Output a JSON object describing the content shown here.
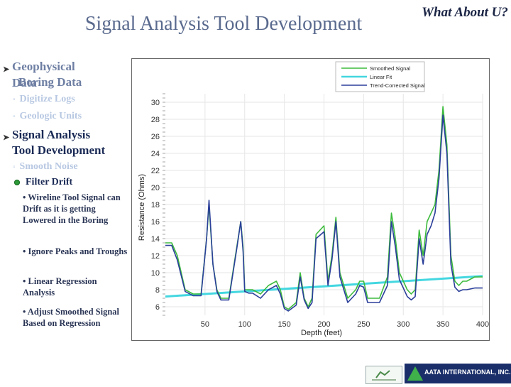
{
  "slide": {
    "title": "Signal Analysis Tool Development",
    "corner_title": "What About U?"
  },
  "outline": {
    "item1_line1": "Geophysical",
    "item1_line2_over": "Data",
    "item1_line2_under": "Boring Data",
    "item1_sub1": "Digitize Logs",
    "item1_sub2": "Geologic Units",
    "item2_line1": "Signal Analysis",
    "item2_line2": "Tool Development",
    "item2_sub1": "Smooth Noise",
    "item2_sub2": "Filter Drift",
    "points": [
      "• Wireline Tool Signal can Drift as it is getting Lowered in the Boring",
      "• Ignore Peaks and Troughs",
      "• Linear Regression Analysis",
      "• Adjust Smoothed Signal Based on Regression"
    ]
  },
  "logos": {
    "company": "AATA INTERNATIONAL, INC."
  },
  "colors": {
    "smoothed": "#3dbb3d",
    "linear_fit": "#44d7e0",
    "trend_corrected": "#2b3f9a"
  },
  "chart_data": {
    "type": "line",
    "xlabel": "Depth (feet)",
    "ylabel": "Resistance (Ohms)",
    "xlim": [
      0,
      400
    ],
    "ylim": [
      5,
      31
    ],
    "xticks": [
      "50",
      "100",
      "150",
      "200",
      "250",
      "300",
      "350",
      "400"
    ],
    "yticks": [
      "6",
      "8",
      "10",
      "12",
      "14",
      "16",
      "18",
      "20",
      "22",
      "24",
      "26",
      "28",
      "30"
    ],
    "legend": "top-right",
    "series": [
      {
        "name": "Smoothed Signal",
        "x": [
          0,
          8,
          15,
          25,
          35,
          45,
          52,
          55,
          60,
          65,
          70,
          80,
          90,
          95,
          98,
          100,
          105,
          110,
          120,
          130,
          140,
          145,
          150,
          155,
          165,
          170,
          175,
          180,
          185,
          190,
          200,
          205,
          210,
          215,
          220,
          230,
          240,
          245,
          250,
          255,
          260,
          270,
          280,
          285,
          290,
          295,
          300,
          305,
          310,
          315,
          320,
          325,
          330,
          335,
          340,
          345,
          350,
          355,
          360,
          365,
          370,
          375,
          380,
          390,
          400
        ],
        "y": [
          13.5,
          13.5,
          12,
          8,
          7.5,
          7.5,
          14,
          18,
          11,
          8,
          7,
          7,
          13,
          16,
          13,
          8,
          8,
          8,
          7.5,
          8.5,
          9,
          8,
          6,
          5.7,
          6.5,
          10,
          7,
          6,
          7,
          14.5,
          15.5,
          9,
          12,
          16.5,
          10,
          7,
          8,
          9,
          9,
          7,
          7,
          7,
          9.5,
          17,
          14,
          10,
          9,
          8,
          7.5,
          8,
          15,
          12,
          16,
          17,
          18,
          22,
          29.5,
          25,
          12,
          9,
          8.5,
          9,
          9,
          9.5,
          9.5
        ]
      },
      {
        "name": "Linear Fit",
        "x": [
          0,
          400
        ],
        "y": [
          7.2,
          9.6
        ]
      },
      {
        "name": "Trend-Corrected Signal",
        "x": [
          0,
          8,
          15,
          25,
          35,
          45,
          52,
          55,
          60,
          65,
          70,
          80,
          90,
          95,
          98,
          100,
          105,
          110,
          120,
          130,
          140,
          145,
          150,
          155,
          165,
          170,
          175,
          180,
          185,
          190,
          200,
          205,
          210,
          215,
          220,
          230,
          240,
          245,
          250,
          255,
          260,
          270,
          280,
          285,
          290,
          295,
          300,
          305,
          310,
          315,
          320,
          325,
          330,
          335,
          340,
          345,
          350,
          355,
          360,
          365,
          370,
          375,
          380,
          390,
          400
        ],
        "y": [
          13.2,
          13.2,
          11.5,
          7.8,
          7.3,
          7.3,
          14,
          18.5,
          11,
          7.8,
          6.8,
          6.8,
          12.8,
          16,
          12.5,
          7.8,
          7.6,
          7.6,
          7,
          8,
          8.5,
          7.5,
          5.8,
          5.5,
          6.2,
          9.5,
          6.8,
          5.8,
          6.5,
          14,
          14.8,
          8.5,
          11.5,
          16,
          9.5,
          6.5,
          7.5,
          8.5,
          8.3,
          6.5,
          6.5,
          6.5,
          8.5,
          16,
          13,
          9.2,
          8.2,
          7.2,
          6.8,
          7.2,
          14,
          11,
          14.5,
          15.5,
          17,
          21,
          28.5,
          24,
          11,
          8.3,
          7.8,
          8,
          8,
          8.2,
          8.2
        ]
      }
    ]
  }
}
